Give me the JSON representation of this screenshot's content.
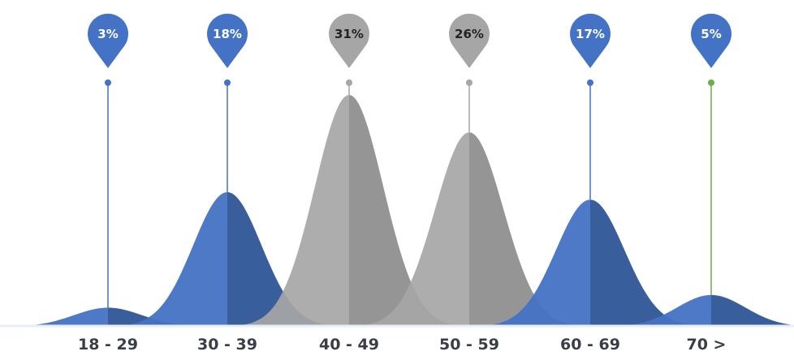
{
  "chart_data": {
    "type": "area",
    "categories": [
      "18 - 29",
      "30 - 39",
      "40 - 49",
      "50 - 59",
      "60 - 69",
      "70 >"
    ],
    "values": [
      3,
      18,
      31,
      26,
      17,
      5
    ],
    "value_labels": [
      "3%",
      "18%",
      "31%",
      "26%",
      "17%",
      "5%"
    ],
    "grid": false,
    "colors": {
      "blue": "#4472c4",
      "blue_dark": "#2f5597",
      "gray": "#a6a6a6",
      "gray_dark": "#8c8c8c",
      "green": "#70ad47",
      "label_text": "#3a3f47"
    },
    "series_colors": [
      "blue",
      "blue",
      "gray",
      "gray",
      "blue",
      "blue"
    ],
    "connector_colors": [
      "blue",
      "blue",
      "gray",
      "gray",
      "blue",
      "green"
    ],
    "pin_text_colors": [
      "#ffffff",
      "#ffffff",
      "#222222",
      "#222222",
      "#ffffff",
      "#ffffff"
    ]
  }
}
